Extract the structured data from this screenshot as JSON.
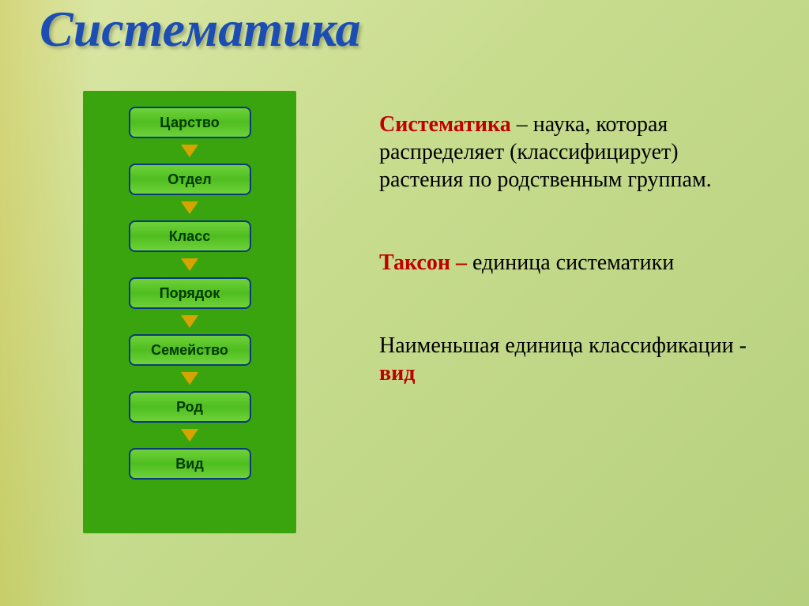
{
  "title": {
    "text": "Систематика",
    "color": "#1b4db3",
    "fontsize": 64
  },
  "hierarchy": {
    "panel_bg": "#3aa40f",
    "box_bg": "linear-gradient(180deg, #6ed23a 0%, #4fbd1f 50%, #6ed23a 100%)",
    "box_border": "#0a3a7a",
    "box_text_color": "#003a00",
    "arrow_color": "#d6a400",
    "box_fontsize": 18,
    "box_radius": 8,
    "levels": [
      "Царство",
      "Отдел",
      "Класс",
      "Порядок",
      "Семейство",
      "Род",
      "Вид"
    ]
  },
  "definitions": {
    "fontsize": 28,
    "text_color": "#000000",
    "highlight_color": "#c00000",
    "para1_term": "Систематика",
    "para1_rest": " – наука, которая распределяет (классифицирует) растения по родственным группам.",
    "para2_term": "Таксон – ",
    "para2_rest": "единица систематики",
    "para3_lead": "Наименьшая единица классификации - ",
    "para3_term": "вид"
  }
}
